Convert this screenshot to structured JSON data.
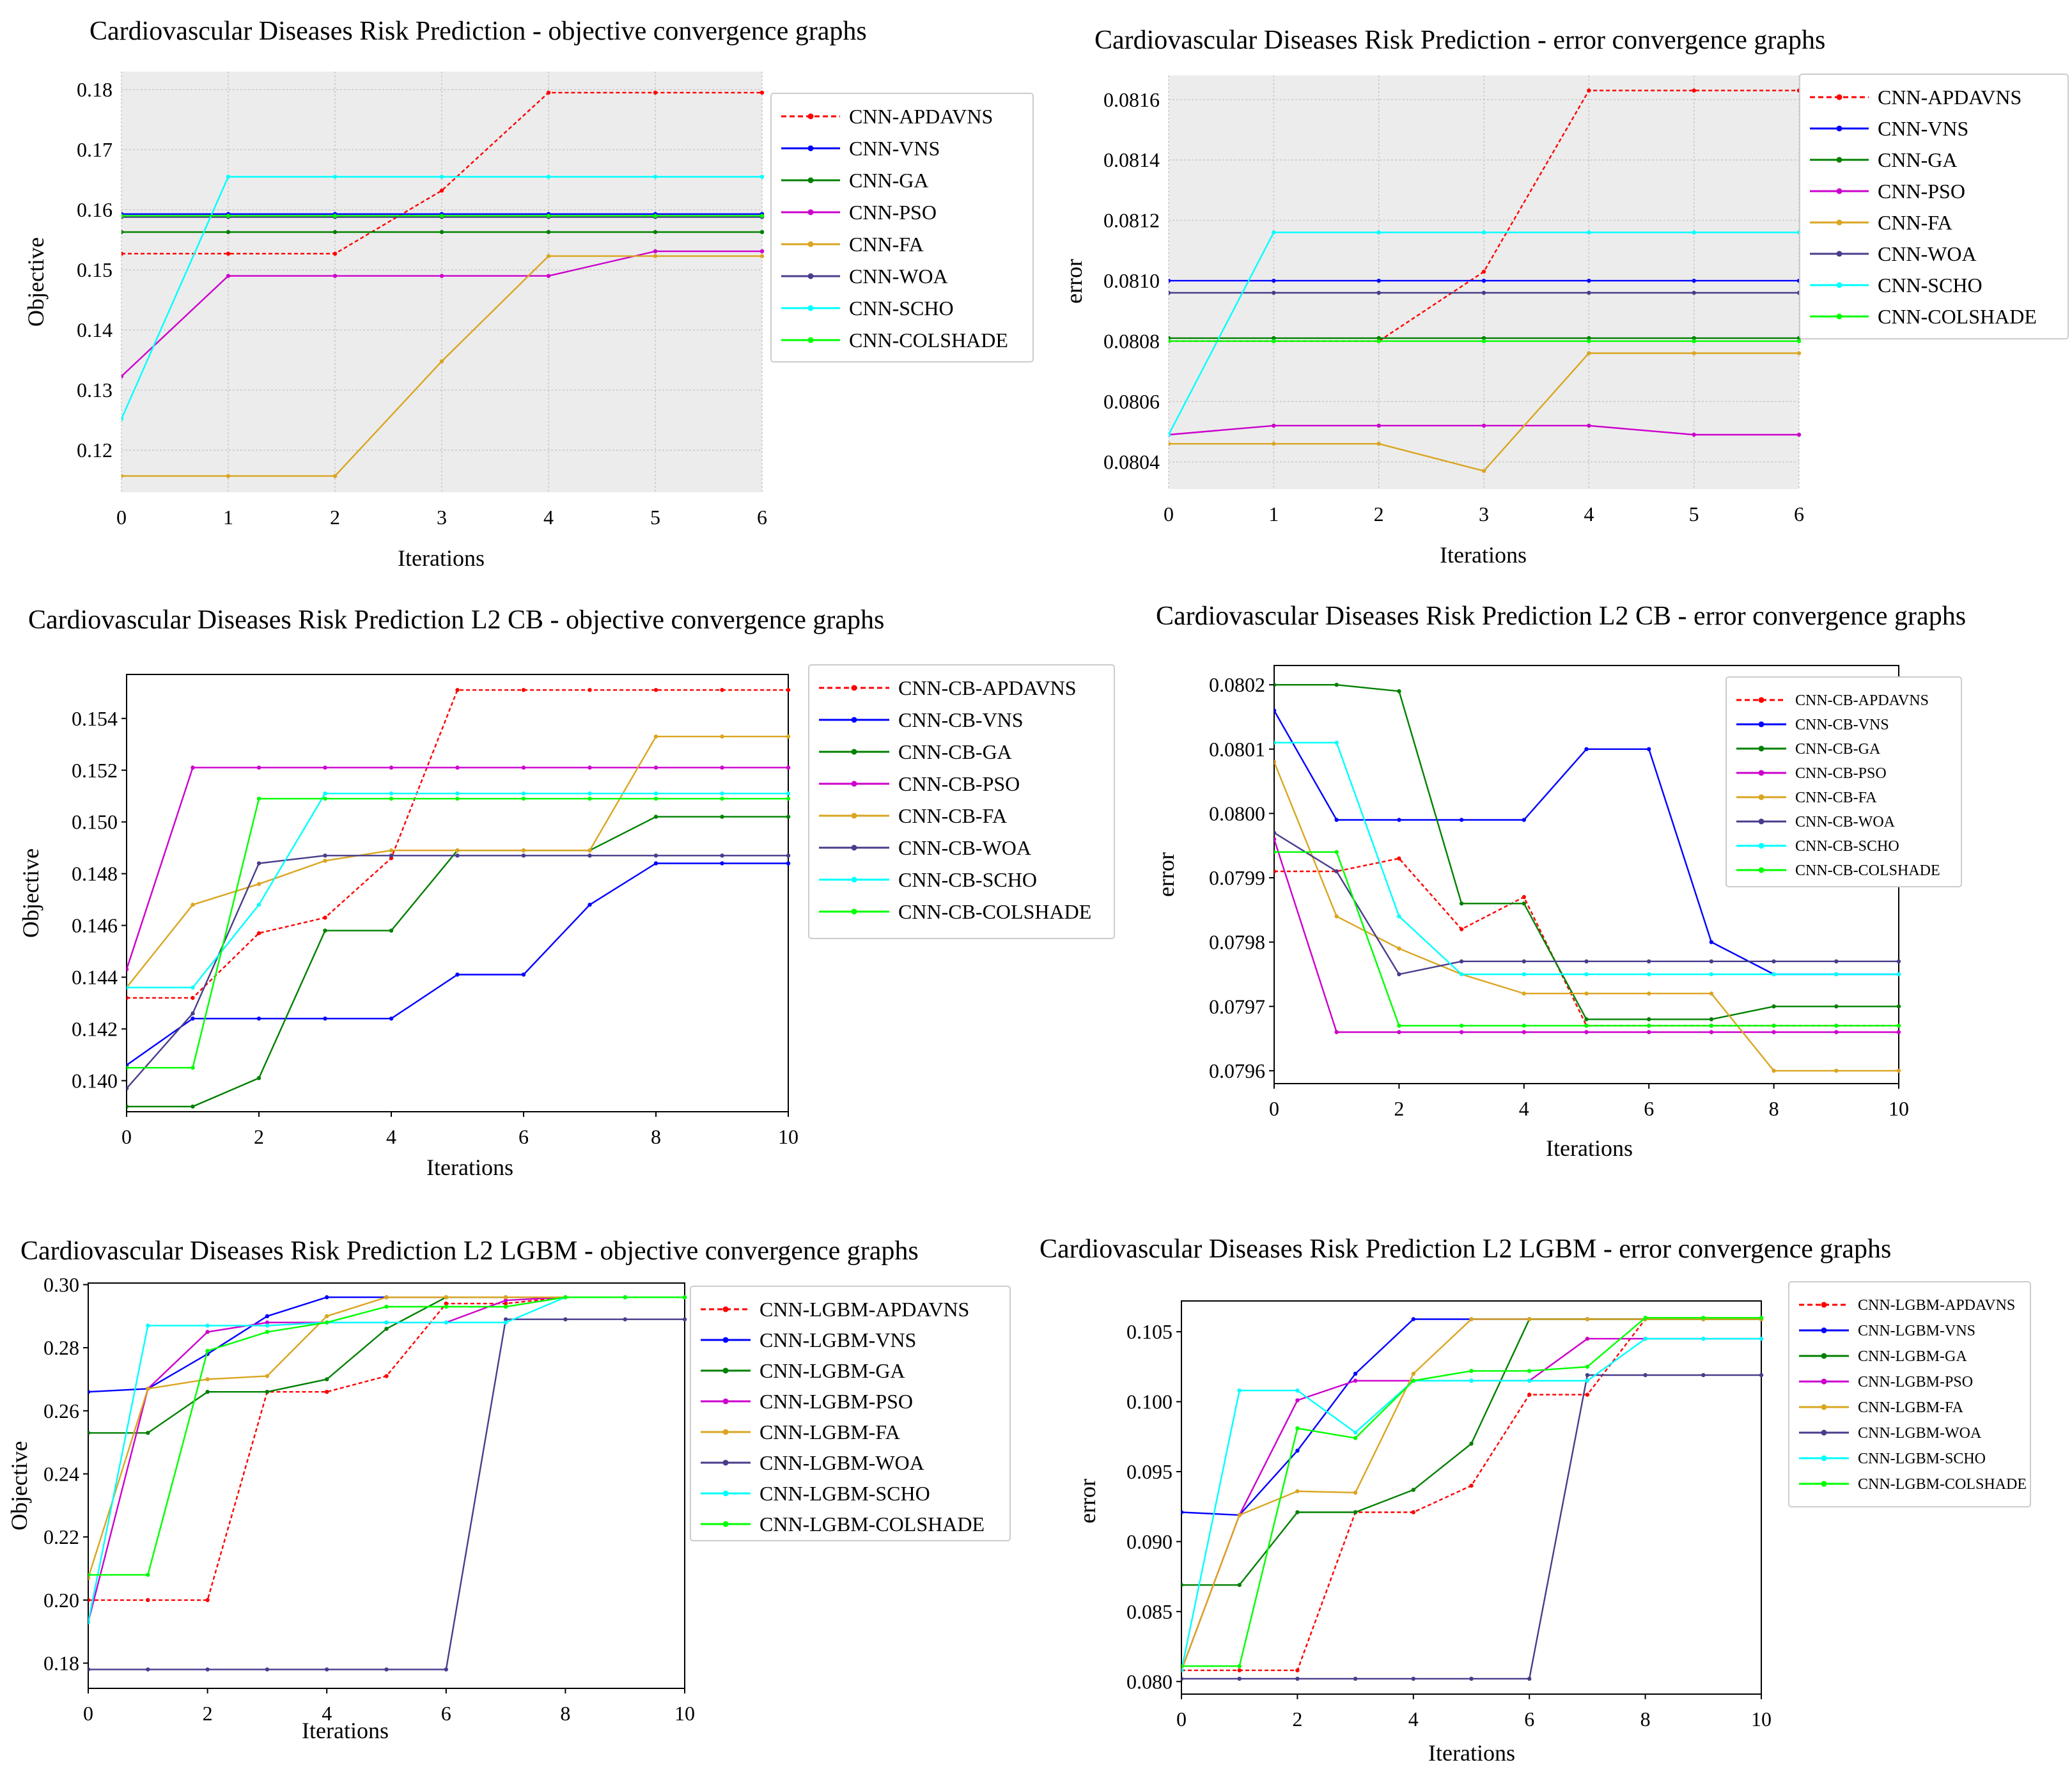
{
  "chart_data": [
    {
      "type": "line",
      "title": "Cardiovascular Diseases Risk Prediction - objective convergence graphs",
      "xlabel": "Iterations",
      "ylabel": "Objective",
      "x": [
        0,
        1,
        2,
        3,
        4,
        5,
        6
      ],
      "xticks": [
        "0",
        "1",
        "2",
        "3",
        "4",
        "5",
        "6"
      ],
      "ylim": [
        0.113,
        0.183
      ],
      "yticks": [
        "0.12",
        "0.13",
        "0.14",
        "0.15",
        "0.16",
        "0.17",
        "0.18"
      ],
      "background": "#ececec",
      "grid": true,
      "legend_position": "outside-right-top",
      "series": [
        {
          "name": "CNN-APDAVNS",
          "color": "#ff0000",
          "dashed": true,
          "values": [
            0.1527,
            0.1527,
            0.1527,
            0.1632,
            0.1795,
            0.1795,
            0.1795
          ]
        },
        {
          "name": "CNN-VNS",
          "color": "#0000ff",
          "values": [
            0.1593,
            0.1593,
            0.1593,
            0.1593,
            0.1593,
            0.1593,
            0.1593
          ]
        },
        {
          "name": "CNN-GA",
          "color": "#008000",
          "values": [
            0.1563,
            0.1563,
            0.1563,
            0.1563,
            0.1563,
            0.1563,
            0.1563
          ]
        },
        {
          "name": "CNN-PSO",
          "color": "#cc00cc",
          "values": [
            0.1323,
            0.149,
            0.149,
            0.149,
            0.149,
            0.1531,
            0.1531
          ]
        },
        {
          "name": "CNN-FA",
          "color": "#daa520",
          "values": [
            0.1157,
            0.1157,
            0.1157,
            0.1348,
            0.1523,
            0.1523,
            0.1523
          ]
        },
        {
          "name": "CNN-WOA",
          "color": "#483d8b",
          "values": [
            0.1588,
            0.1588,
            0.1588,
            0.1588,
            0.1588,
            0.1588,
            0.1588
          ]
        },
        {
          "name": "CNN-SCHO",
          "color": "#00ffff",
          "values": [
            0.1252,
            0.1655,
            0.1655,
            0.1655,
            0.1655,
            0.1655,
            0.1655
          ]
        },
        {
          "name": "CNN-COLSHADE",
          "color": "#00ff00",
          "values": [
            0.159,
            0.159,
            0.159,
            0.159,
            0.159,
            0.159,
            0.159
          ]
        }
      ]
    },
    {
      "type": "line",
      "title": "Cardiovascular Diseases Risk Prediction - error convergence graphs",
      "xlabel": "Iterations",
      "ylabel": "error",
      "x": [
        0,
        1,
        2,
        3,
        4,
        5,
        6
      ],
      "xticks": [
        "0",
        "1",
        "2",
        "3",
        "4",
        "5",
        "6"
      ],
      "ylim": [
        0.08031,
        0.08168
      ],
      "yticks": [
        "0.0804",
        "0.0806",
        "0.0808",
        "0.0810",
        "0.0812",
        "0.0814",
        "0.0816"
      ],
      "background": "#ececec",
      "grid": true,
      "legend_position": "outside-right-top",
      "series": [
        {
          "name": "CNN-APDAVNS",
          "color": "#ff0000",
          "dashed": true,
          "values": [
            0.0808,
            0.0808,
            0.0808,
            0.08103,
            0.08163,
            0.08163,
            0.08163
          ]
        },
        {
          "name": "CNN-VNS",
          "color": "#0000ff",
          "values": [
            0.081,
            0.081,
            0.081,
            0.081,
            0.081,
            0.081,
            0.081
          ]
        },
        {
          "name": "CNN-GA",
          "color": "#008000",
          "values": [
            0.08081,
            0.08081,
            0.08081,
            0.08081,
            0.08081,
            0.08081,
            0.08081
          ]
        },
        {
          "name": "CNN-PSO",
          "color": "#cc00cc",
          "values": [
            0.08049,
            0.08052,
            0.08052,
            0.08052,
            0.08052,
            0.08049,
            0.08049
          ]
        },
        {
          "name": "CNN-FA",
          "color": "#daa520",
          "values": [
            0.08046,
            0.08046,
            0.08046,
            0.08037,
            0.08076,
            0.08076,
            0.08076
          ]
        },
        {
          "name": "CNN-WOA",
          "color": "#483d8b",
          "values": [
            0.08096,
            0.08096,
            0.08096,
            0.08096,
            0.08096,
            0.08096,
            0.08096
          ]
        },
        {
          "name": "CNN-SCHO",
          "color": "#00ffff",
          "values": [
            0.08049,
            0.08116,
            0.08116,
            0.08116,
            0.08116,
            0.08116,
            0.08116
          ]
        },
        {
          "name": "CNN-COLSHADE",
          "color": "#00ff00",
          "values": [
            0.0808,
            0.0808,
            0.0808,
            0.0808,
            0.0808,
            0.0808,
            0.0808
          ]
        }
      ]
    },
    {
      "type": "line",
      "title": "Cardiovascular Diseases Risk Prediction L2 CB - objective convergence graphs",
      "xlabel": "Iterations",
      "ylabel": "Objective",
      "x": [
        0,
        1,
        2,
        3,
        4,
        5,
        6,
        7,
        8,
        9,
        10
      ],
      "xticks": [
        "0",
        "2",
        "4",
        "6",
        "8",
        "10"
      ],
      "xtick_values": [
        0,
        2,
        4,
        6,
        8,
        10
      ],
      "ylim": [
        0.1388,
        0.1557
      ],
      "yticks": [
        "0.140",
        "0.142",
        "0.144",
        "0.146",
        "0.148",
        "0.150",
        "0.152",
        "0.154"
      ],
      "background": "#ffffff",
      "grid": false,
      "legend_position": "outside-right-top",
      "series": [
        {
          "name": "CNN-CB-APDAVNS",
          "color": "#ff0000",
          "dashed": true,
          "values": [
            0.1432,
            0.1432,
            0.1457,
            0.1463,
            0.1486,
            0.1551,
            0.1551,
            0.1551,
            0.1551,
            0.1551,
            0.1551
          ]
        },
        {
          "name": "CNN-CB-VNS",
          "color": "#0000ff",
          "values": [
            0.1406,
            0.1424,
            0.1424,
            0.1424,
            0.1424,
            0.1441,
            0.1441,
            0.1468,
            0.1484,
            0.1484,
            0.1484
          ]
        },
        {
          "name": "CNN-CB-GA",
          "color": "#008000",
          "values": [
            0.139,
            0.139,
            0.1401,
            0.1458,
            0.1458,
            0.1489,
            0.1489,
            0.1489,
            0.1502,
            0.1502,
            0.1502
          ]
        },
        {
          "name": "CNN-CB-PSO",
          "color": "#cc00cc",
          "values": [
            0.1443,
            0.1521,
            0.1521,
            0.1521,
            0.1521,
            0.1521,
            0.1521,
            0.1521,
            0.1521,
            0.1521,
            0.1521
          ]
        },
        {
          "name": "CNN-CB-FA",
          "color": "#daa520",
          "values": [
            0.1436,
            0.1468,
            0.1476,
            0.1485,
            0.1489,
            0.1489,
            0.1489,
            0.1489,
            0.1533,
            0.1533,
            0.1533
          ]
        },
        {
          "name": "CNN-CB-WOA",
          "color": "#483d8b",
          "values": [
            0.1397,
            0.1426,
            0.1484,
            0.1487,
            0.1487,
            0.1487,
            0.1487,
            0.1487,
            0.1487,
            0.1487,
            0.1487
          ]
        },
        {
          "name": "CNN-CB-SCHO",
          "color": "#00ffff",
          "values": [
            0.1436,
            0.1436,
            0.1468,
            0.1511,
            0.1511,
            0.1511,
            0.1511,
            0.1511,
            0.1511,
            0.1511,
            0.1511
          ]
        },
        {
          "name": "CNN-CB-COLSHADE",
          "color": "#00ff00",
          "values": [
            0.1405,
            0.1405,
            0.1509,
            0.1509,
            0.1509,
            0.1509,
            0.1509,
            0.1509,
            0.1509,
            0.1509,
            0.1509
          ]
        }
      ]
    },
    {
      "type": "line",
      "title": "Cardiovascular Diseases Risk Prediction L2 CB - error convergence graphs",
      "xlabel": "Iterations",
      "ylabel": "error",
      "x": [
        0,
        1,
        2,
        3,
        4,
        5,
        6,
        7,
        8,
        9,
        10
      ],
      "xticks": [
        "0",
        "2",
        "4",
        "6",
        "8",
        "10"
      ],
      "xtick_values": [
        0,
        2,
        4,
        6,
        8,
        10
      ],
      "ylim": [
        0.07958,
        0.08023
      ],
      "yticks": [
        "0.0796",
        "0.0797",
        "0.0798",
        "0.0799",
        "0.0800",
        "0.0801",
        "0.0802"
      ],
      "background": "#ffffff",
      "grid": false,
      "legend_position": "inside-right-top",
      "legend_small": true,
      "series": [
        {
          "name": "CNN-CB-APDAVNS",
          "color": "#ff0000",
          "dashed": true,
          "values": [
            0.07991,
            0.07991,
            0.07993,
            0.07982,
            0.07987,
            0.07967,
            0.07967,
            0.07967,
            0.07967,
            0.07967,
            0.07967
          ]
        },
        {
          "name": "CNN-CB-VNS",
          "color": "#0000ff",
          "values": [
            0.08016,
            0.07999,
            0.07999,
            0.07999,
            0.07999,
            0.0801,
            0.0801,
            0.0798,
            0.07975,
            0.07975,
            0.07975
          ]
        },
        {
          "name": "CNN-CB-GA",
          "color": "#008000",
          "values": [
            0.0802,
            0.0802,
            0.08019,
            0.07986,
            0.07986,
            0.07968,
            0.07968,
            0.07968,
            0.0797,
            0.0797,
            0.0797
          ]
        },
        {
          "name": "CNN-CB-PSO",
          "color": "#cc00cc",
          "values": [
            0.07996,
            0.07966,
            0.07966,
            0.07966,
            0.07966,
            0.07966,
            0.07966,
            0.07966,
            0.07966,
            0.07966,
            0.07966
          ]
        },
        {
          "name": "CNN-CB-FA",
          "color": "#daa520",
          "values": [
            0.08008,
            0.07984,
            0.07979,
            0.07975,
            0.07972,
            0.07972,
            0.07972,
            0.07972,
            0.0796,
            0.0796,
            0.0796
          ]
        },
        {
          "name": "CNN-CB-WOA",
          "color": "#483d8b",
          "values": [
            0.07997,
            0.07991,
            0.07975,
            0.07977,
            0.07977,
            0.07977,
            0.07977,
            0.07977,
            0.07977,
            0.07977,
            0.07977
          ]
        },
        {
          "name": "CNN-CB-SCHO",
          "color": "#00ffff",
          "values": [
            0.08011,
            0.08011,
            0.07984,
            0.07975,
            0.07975,
            0.07975,
            0.07975,
            0.07975,
            0.07975,
            0.07975,
            0.07975
          ]
        },
        {
          "name": "CNN-CB-COLSHADE",
          "color": "#00ff00",
          "values": [
            0.07994,
            0.07994,
            0.07967,
            0.07967,
            0.07967,
            0.07967,
            0.07967,
            0.07967,
            0.07967,
            0.07967,
            0.07967
          ]
        }
      ]
    },
    {
      "type": "line",
      "title": "Cardiovascular Diseases Risk Prediction L2 LGBM - objective convergence graphs",
      "xlabel": "Iterations",
      "ylabel": "Objective",
      "x": [
        0,
        1,
        2,
        3,
        4,
        5,
        6,
        7,
        8,
        9,
        10
      ],
      "xticks": [
        "0",
        "2",
        "4",
        "6",
        "8",
        "10"
      ],
      "xtick_values": [
        0,
        2,
        4,
        6,
        8,
        10
      ],
      "ylim": [
        0.172,
        0.3005
      ],
      "yticks": [
        "0.18",
        "0.20",
        "0.22",
        "0.24",
        "0.26",
        "0.28",
        "0.30"
      ],
      "background": "#ffffff",
      "grid": false,
      "legend_position": "outside-right-top",
      "series": [
        {
          "name": "CNN-LGBM-APDAVNS",
          "color": "#ff0000",
          "dashed": true,
          "values": [
            0.2,
            0.2,
            0.2,
            0.266,
            0.266,
            0.271,
            0.294,
            0.294,
            0.296,
            0.296,
            0.296
          ]
        },
        {
          "name": "CNN-LGBM-VNS",
          "color": "#0000ff",
          "values": [
            0.266,
            0.267,
            0.278,
            0.29,
            0.296,
            0.296,
            0.296,
            0.296,
            0.296,
            0.296,
            0.296
          ]
        },
        {
          "name": "CNN-LGBM-GA",
          "color": "#008000",
          "values": [
            0.253,
            0.253,
            0.266,
            0.266,
            0.27,
            0.286,
            0.296,
            0.296,
            0.296,
            0.296,
            0.296
          ]
        },
        {
          "name": "CNN-LGBM-PSO",
          "color": "#cc00cc",
          "values": [
            0.193,
            0.267,
            0.285,
            0.288,
            0.288,
            0.288,
            0.288,
            0.295,
            0.296,
            0.296,
            0.296
          ]
        },
        {
          "name": "CNN-LGBM-FA",
          "color": "#daa520",
          "values": [
            0.207,
            0.267,
            0.27,
            0.271,
            0.29,
            0.296,
            0.296,
            0.296,
            0.296,
            0.296,
            0.296
          ]
        },
        {
          "name": "CNN-LGBM-WOA",
          "color": "#483d8b",
          "values": [
            0.178,
            0.178,
            0.178,
            0.178,
            0.178,
            0.178,
            0.178,
            0.289,
            0.289,
            0.289,
            0.289
          ]
        },
        {
          "name": "CNN-LGBM-SCHO",
          "color": "#00ffff",
          "values": [
            0.193,
            0.287,
            0.287,
            0.287,
            0.288,
            0.288,
            0.288,
            0.288,
            0.296,
            0.296,
            0.296
          ]
        },
        {
          "name": "CNN-LGBM-COLSHADE",
          "color": "#00ff00",
          "values": [
            0.208,
            0.208,
            0.279,
            0.285,
            0.288,
            0.293,
            0.293,
            0.293,
            0.296,
            0.296,
            0.296
          ]
        }
      ]
    },
    {
      "type": "line",
      "title": "Cardiovascular Diseases Risk Prediction L2 LGBM - error convergence graphs",
      "xlabel": "Iterations",
      "ylabel": "error",
      "x": [
        0,
        1,
        2,
        3,
        4,
        5,
        6,
        7,
        8,
        9,
        10
      ],
      "xticks": [
        "0",
        "2",
        "4",
        "6",
        "8",
        "10"
      ],
      "xtick_values": [
        0,
        2,
        4,
        6,
        8,
        10
      ],
      "ylim": [
        0.0791,
        0.1072
      ],
      "yticks": [
        "0.080",
        "0.085",
        "0.090",
        "0.095",
        "0.100",
        "0.105"
      ],
      "background": "#ffffff",
      "grid": false,
      "legend_position": "outside-right-top",
      "legend_small": true,
      "series": [
        {
          "name": "CNN-LGBM-APDAVNS",
          "color": "#ff0000",
          "dashed": true,
          "values": [
            0.0808,
            0.0808,
            0.0808,
            0.0921,
            0.0921,
            0.094,
            0.1005,
            0.1005,
            0.1059,
            0.1059,
            0.1059
          ]
        },
        {
          "name": "CNN-LGBM-VNS",
          "color": "#0000ff",
          "values": [
            0.0921,
            0.0919,
            0.0965,
            0.102,
            0.1059,
            0.1059,
            0.1059,
            0.1059,
            0.1059,
            0.1059,
            0.1059
          ]
        },
        {
          "name": "CNN-LGBM-GA",
          "color": "#008000",
          "values": [
            0.0869,
            0.0869,
            0.0921,
            0.0921,
            0.0937,
            0.097,
            0.1059,
            0.1059,
            0.1059,
            0.1059,
            0.1059
          ]
        },
        {
          "name": "CNN-LGBM-PSO",
          "color": "#cc00cc",
          "values": [
            0.0808,
            0.0919,
            0.1001,
            0.1015,
            0.1015,
            0.1015,
            0.1015,
            0.1045,
            0.1045,
            0.1045,
            0.1045
          ]
        },
        {
          "name": "CNN-LGBM-FA",
          "color": "#daa520",
          "values": [
            0.0808,
            0.0919,
            0.0936,
            0.0935,
            0.102,
            0.1059,
            0.1059,
            0.1059,
            0.1059,
            0.1059,
            0.1059
          ]
        },
        {
          "name": "CNN-LGBM-WOA",
          "color": "#483d8b",
          "values": [
            0.0802,
            0.0802,
            0.0802,
            0.0802,
            0.0802,
            0.0802,
            0.0802,
            0.1019,
            0.1019,
            0.1019,
            0.1019
          ]
        },
        {
          "name": "CNN-LGBM-SCHO",
          "color": "#00ffff",
          "values": [
            0.0808,
            0.1008,
            0.1008,
            0.0978,
            0.1015,
            0.1015,
            0.1015,
            0.1015,
            0.1045,
            0.1045,
            0.1045
          ]
        },
        {
          "name": "CNN-LGBM-COLSHADE",
          "color": "#00ff00",
          "values": [
            0.0811,
            0.0811,
            0.0981,
            0.0974,
            0.1015,
            0.1022,
            0.1022,
            0.1025,
            0.106,
            0.106,
            0.106
          ]
        }
      ]
    }
  ]
}
